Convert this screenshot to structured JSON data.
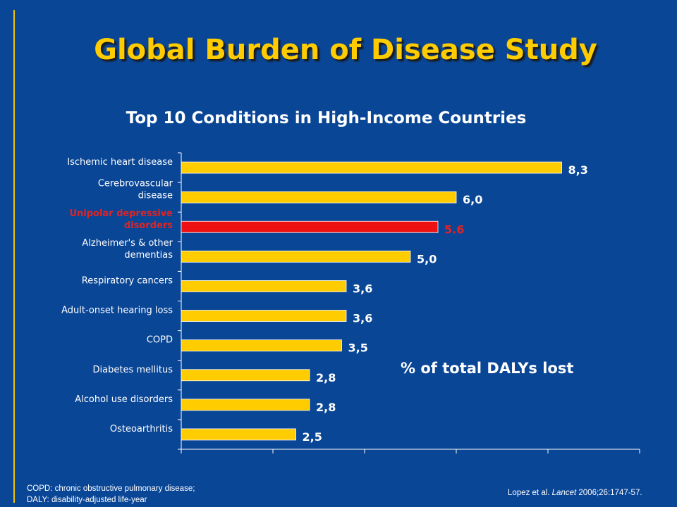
{
  "slide": {
    "title": "Global Burden of Disease Study",
    "units_note": "% of total DALYs lost",
    "footnote_lines": [
      "COPD: chronic obstructive pulmonary disease;",
      "DALY: disability-adjusted life-year"
    ],
    "citation": {
      "prefix": "Lopez et al. ",
      "journal": "Lancet",
      "suffix": " 2006;26:1747-57."
    }
  },
  "colors": {
    "background": "#0a4696",
    "bar": "#ffcc00",
    "highlight_bar": "#ee1111",
    "highlight_text": "#e02424",
    "title": "#ffcc00"
  },
  "chart_data": {
    "type": "bar",
    "orientation": "horizontal",
    "title": "Top 10 Conditions in High-Income Countries",
    "categories": [
      [
        "Ischemic heart disease"
      ],
      [
        "Cerebrovascular",
        "disease"
      ],
      [
        "Unipolar depressive",
        "disorders"
      ],
      [
        "Alzheimer's & other",
        "dementias"
      ],
      [
        "Respiratory cancers"
      ],
      [
        "Adult-onset hearing loss"
      ],
      [
        "COPD"
      ],
      [
        "Diabetes mellitus"
      ],
      [
        "Alcohol use disorders"
      ],
      [
        "Osteoarthritis"
      ]
    ],
    "values": [
      8.3,
      6.0,
      5.6,
      5.0,
      3.6,
      3.6,
      3.5,
      2.8,
      2.8,
      2.5
    ],
    "value_labels": [
      "8,3",
      "6,0",
      "5.6",
      "5,0",
      "3,6",
      "3,6",
      "3,5",
      "2,8",
      "2,8",
      "2,5"
    ],
    "highlight_index": 2,
    "xlim": [
      0,
      10
    ],
    "x_major_ticks": [
      0,
      2,
      4,
      6,
      8,
      10
    ],
    "grid": false,
    "xlabel": "",
    "ylabel": ""
  }
}
